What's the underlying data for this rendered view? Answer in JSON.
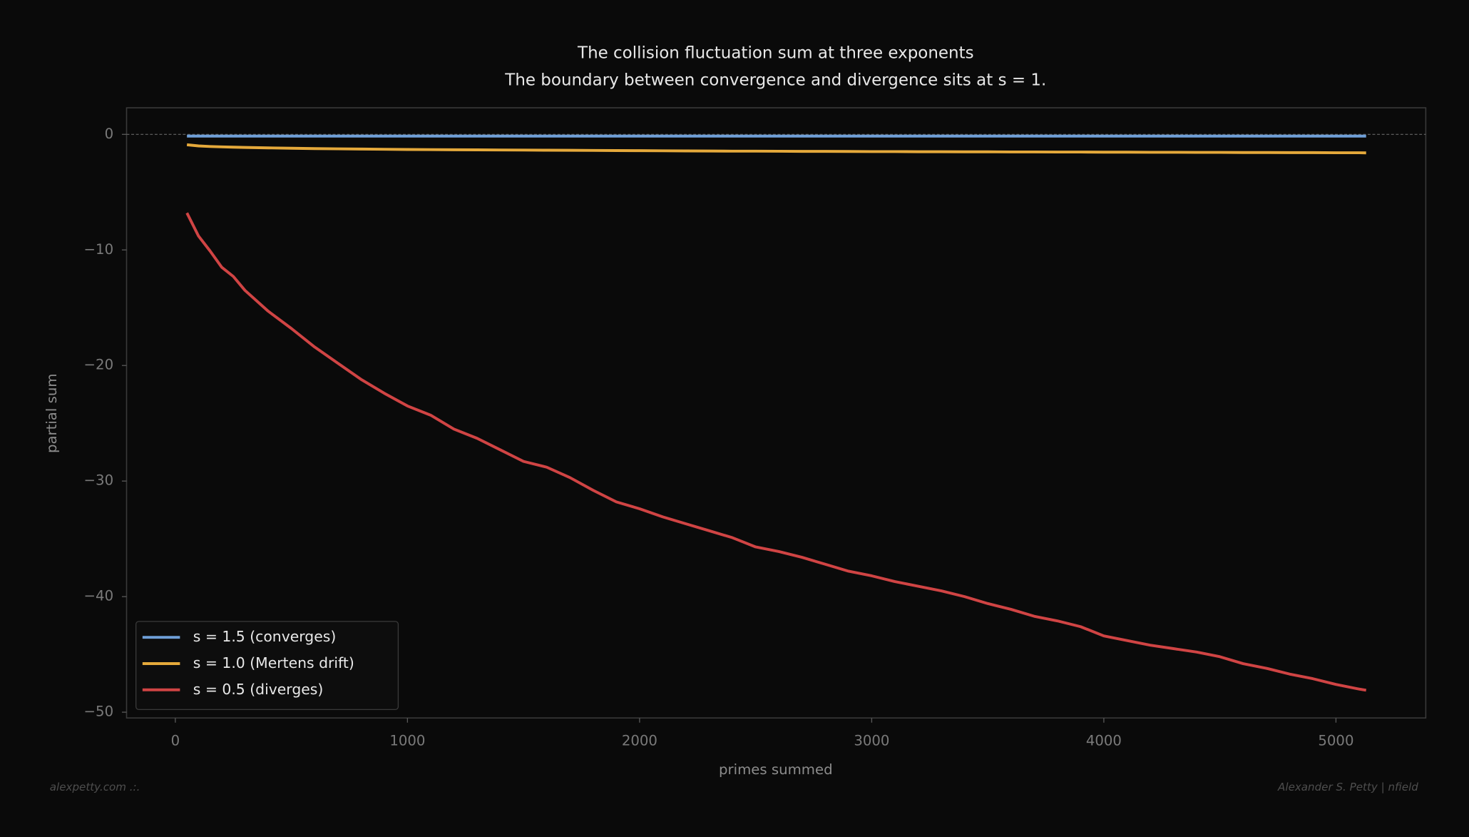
{
  "chart_data": {
    "type": "line",
    "title": "The collision fluctuation sum at three exponents",
    "subtitle": "The boundary between convergence and divergence sits at s = 1.",
    "x_label": "primes summed",
    "y_label": "partial sum",
    "footer_left": "alexpetty.com  .:.",
    "footer_right": "Alexander S. Petty  |  nfield",
    "x": [
      50,
      100,
      150,
      200,
      250,
      300,
      400,
      500,
      600,
      700,
      800,
      900,
      1000,
      1100,
      1200,
      1300,
      1400,
      1500,
      1600,
      1700,
      1800,
      1900,
      2000,
      2100,
      2200,
      2300,
      2400,
      2500,
      2600,
      2700,
      2800,
      2900,
      3000,
      3100,
      3200,
      3300,
      3400,
      3500,
      3600,
      3700,
      3800,
      3900,
      4000,
      4100,
      4200,
      4300,
      4400,
      4500,
      4600,
      4700,
      4800,
      4900,
      5000,
      5100,
      5130
    ],
    "series": [
      {
        "name": "s = 1.5 (converges)",
        "color": "#6f9fd8",
        "values": [
          -0.15,
          -0.15,
          -0.15,
          -0.15,
          -0.15,
          -0.15,
          -0.15,
          -0.15,
          -0.15,
          -0.15,
          -0.15,
          -0.15,
          -0.15,
          -0.15,
          -0.15,
          -0.15,
          -0.15,
          -0.15,
          -0.15,
          -0.15,
          -0.15,
          -0.15,
          -0.15,
          -0.15,
          -0.15,
          -0.15,
          -0.15,
          -0.15,
          -0.15,
          -0.15,
          -0.15,
          -0.15,
          -0.15,
          -0.15,
          -0.15,
          -0.15,
          -0.15,
          -0.15,
          -0.15,
          -0.15,
          -0.15,
          -0.15,
          -0.15,
          -0.15,
          -0.15,
          -0.15,
          -0.15,
          -0.15,
          -0.15,
          -0.15,
          -0.15,
          -0.15,
          -0.15,
          -0.15,
          -0.15
        ]
      },
      {
        "name": "s = 1.0 (Mertens drift)",
        "color": "#e5a93b",
        "values": [
          -0.9,
          -1.0,
          -1.05,
          -1.08,
          -1.11,
          -1.13,
          -1.17,
          -1.2,
          -1.23,
          -1.25,
          -1.27,
          -1.29,
          -1.31,
          -1.32,
          -1.33,
          -1.34,
          -1.35,
          -1.36,
          -1.37,
          -1.38,
          -1.39,
          -1.4,
          -1.41,
          -1.42,
          -1.43,
          -1.44,
          -1.45,
          -1.45,
          -1.46,
          -1.47,
          -1.47,
          -1.48,
          -1.49,
          -1.49,
          -1.5,
          -1.5,
          -1.51,
          -1.51,
          -1.52,
          -1.52,
          -1.53,
          -1.53,
          -1.54,
          -1.54,
          -1.55,
          -1.55,
          -1.56,
          -1.56,
          -1.57,
          -1.57,
          -1.58,
          -1.58,
          -1.59,
          -1.59,
          -1.6
        ]
      },
      {
        "name": "s = 0.5 (diverges)",
        "color": "#d04444",
        "values": [
          -6.8,
          -8.8,
          -10.1,
          -11.5,
          -12.3,
          -13.5,
          -15.3,
          -16.8,
          -18.4,
          -19.8,
          -21.2,
          -22.4,
          -23.5,
          -24.3,
          -25.5,
          -26.3,
          -27.3,
          -28.3,
          -28.8,
          -29.7,
          -30.8,
          -31.8,
          -32.4,
          -33.1,
          -33.7,
          -34.3,
          -34.9,
          -35.7,
          -36.1,
          -36.6,
          -37.2,
          -37.8,
          -38.2,
          -38.7,
          -39.1,
          -39.5,
          -40.0,
          -40.6,
          -41.1,
          -41.7,
          -42.1,
          -42.6,
          -43.4,
          -43.8,
          -44.2,
          -44.5,
          -44.8,
          -45.2,
          -45.8,
          -46.2,
          -46.7,
          -47.1,
          -47.6,
          -48.0,
          -48.1
        ]
      }
    ],
    "xlim": [
      -210,
      5387
    ],
    "ylim": [
      -50.5,
      2.3
    ],
    "xticks": [
      0,
      1000,
      2000,
      3000,
      4000,
      5000
    ],
    "yticks": [
      {
        "value": -50,
        "label": "−50"
      },
      {
        "value": -40,
        "label": "−40"
      },
      {
        "value": -30,
        "label": "−30"
      },
      {
        "value": -20,
        "label": "−20"
      },
      {
        "value": -10,
        "label": "−10"
      },
      0
    ],
    "hline": 0,
    "legend": "lower left"
  }
}
